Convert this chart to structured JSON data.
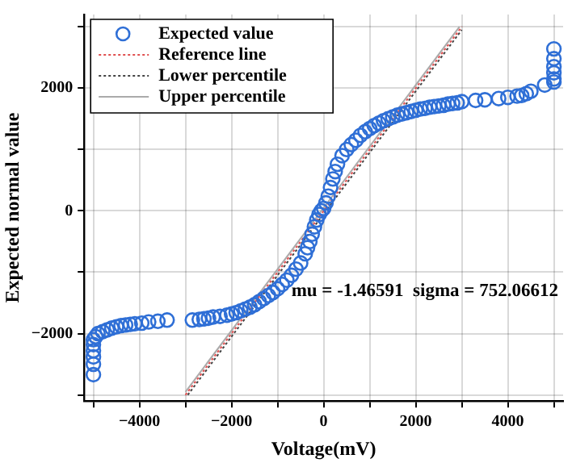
{
  "chart_data": {
    "type": "scatter",
    "xlabel": "Voltage(mV)",
    "ylabel": "Expected normal value",
    "xlim": [
      -5200,
      5200
    ],
    "ylim": [
      -3100,
      3200
    ],
    "xticks": [
      {
        "value": -5000,
        "label": null
      },
      -4000,
      {
        "value": -3000,
        "label": null
      },
      -2000,
      {
        "value": -1000,
        "label": null
      },
      0,
      {
        "value": 1000,
        "label": null
      },
      2000,
      {
        "value": 3000,
        "label": null
      },
      4000,
      {
        "value": 5000,
        "label": null
      }
    ],
    "yticks": [
      {
        "value": -3000,
        "label": null
      },
      -2000,
      {
        "value": -1000,
        "label": null
      },
      0,
      {
        "value": 1000,
        "label": null
      },
      2000,
      {
        "value": 3000,
        "label": null
      }
    ],
    "grid": true,
    "legend": "top left",
    "annotations": [
      "mu = -1.46591  sigma = 752.06612"
    ],
    "series": [
      {
        "name": "Expected value",
        "type": "scatter",
        "marker": "circle",
        "color": "#2f6fd6",
        "x": [
          -5000,
          -5000,
          -5000,
          -5000,
          -5000,
          -5000,
          -4950,
          -4900,
          -4800,
          -4700,
          -4600,
          -4500,
          -4400,
          -4300,
          -4200,
          -4100,
          -3950,
          -3800,
          -3600,
          -3400,
          -2850,
          -2700,
          -2600,
          -2500,
          -2400,
          -2250,
          -2100,
          -2000,
          -1900,
          -1800,
          -1700,
          -1600,
          -1500,
          -1400,
          -1300,
          -1200,
          -1100,
          -1000,
          -900,
          -800,
          -700,
          -600,
          -500,
          -400,
          -350,
          -300,
          -250,
          -200,
          -150,
          -100,
          -50,
          0,
          50,
          100,
          150,
          200,
          250,
          300,
          400,
          500,
          600,
          700,
          800,
          900,
          1000,
          1100,
          1200,
          1300,
          1400,
          1500,
          1600,
          1700,
          1800,
          1900,
          2000,
          2100,
          2200,
          2300,
          2400,
          2500,
          2600,
          2700,
          2800,
          2900,
          3000,
          3300,
          3500,
          3800,
          4000,
          4200,
          4300,
          4400,
          4500,
          4800,
          5000,
          5000,
          5000,
          5000,
          5000,
          5000
        ],
        "values": [
          -2670,
          -2500,
          -2380,
          -2280,
          -2180,
          -2100,
          -2050,
          -2000,
          -1970,
          -1940,
          -1910,
          -1890,
          -1870,
          -1860,
          -1850,
          -1840,
          -1830,
          -1810,
          -1800,
          -1780,
          -1780,
          -1770,
          -1760,
          -1750,
          -1730,
          -1720,
          -1700,
          -1680,
          -1660,
          -1630,
          -1600,
          -1570,
          -1530,
          -1480,
          -1430,
          -1380,
          -1330,
          -1270,
          -1200,
          -1130,
          -1050,
          -950,
          -850,
          -700,
          -600,
          -500,
          -380,
          -260,
          -150,
          -60,
          0,
          40,
          130,
          240,
          380,
          520,
          640,
          760,
          900,
          1000,
          1080,
          1150,
          1230,
          1290,
          1340,
          1390,
          1430,
          1470,
          1500,
          1530,
          1560,
          1580,
          1600,
          1620,
          1640,
          1660,
          1670,
          1690,
          1700,
          1710,
          1720,
          1740,
          1750,
          1760,
          1780,
          1800,
          1810,
          1830,
          1850,
          1870,
          1880,
          1910,
          1950,
          2050,
          2100,
          2150,
          2250,
          2350,
          2480,
          2640
        ]
      },
      {
        "name": "Reference line",
        "type": "line",
        "marker": "none",
        "line_style": "dotted",
        "color": "#e05050",
        "x": [
          -3000,
          3000
        ],
        "values": [
          -3000,
          3000
        ]
      },
      {
        "name": "Lower percentile",
        "type": "line",
        "marker": "none",
        "line_style": "dotted",
        "color": "#444444",
        "x": [
          -2950,
          3000
        ],
        "values": [
          -3000,
          2950
        ]
      },
      {
        "name": "Upper percentile",
        "type": "line",
        "marker": "none",
        "line_style": "solid",
        "color": "#aaaaaa",
        "x": [
          -3000,
          2950
        ],
        "values": [
          -2950,
          3000
        ]
      }
    ]
  }
}
